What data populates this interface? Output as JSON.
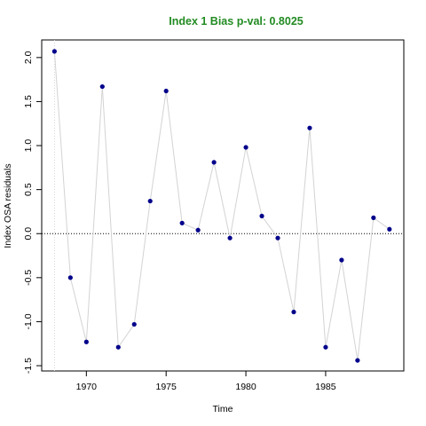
{
  "chart_data": {
    "type": "line",
    "title": "Index 1 Bias p-val: 0.8025",
    "xlabel": "Time",
    "ylabel": "Index OSA residuals",
    "x": [
      1968,
      1969,
      1970,
      1971,
      1972,
      1973,
      1974,
      1975,
      1976,
      1977,
      1978,
      1979,
      1980,
      1981,
      1982,
      1983,
      1984,
      1985,
      1986,
      1987,
      1988,
      1989
    ],
    "y": [
      2.07,
      -0.5,
      -1.23,
      1.67,
      -1.29,
      -1.03,
      0.37,
      1.62,
      0.12,
      0.04,
      0.81,
      -0.05,
      0.98,
      0.2,
      -0.05,
      -0.89,
      1.2,
      -1.29,
      -0.3,
      -1.44,
      0.18,
      0.05
    ],
    "xlim": [
      1967.2,
      1989.9
    ],
    "ylim": [
      -1.56,
      2.2
    ],
    "xticks": [
      "1970",
      "1975",
      "1980",
      "1985"
    ],
    "yticks": [
      "-1.5",
      "-1.0",
      "-0.5",
      "0.0",
      "0.5",
      "1.0",
      "1.5",
      "2.0"
    ],
    "reference_line_y": 0,
    "reference_line_x": 1968,
    "colors": {
      "title": "#228B22",
      "points": "#00008B",
      "line": "#d3d3d3",
      "reference": "#000000",
      "vertical_reference": "#d3d3d3"
    }
  }
}
